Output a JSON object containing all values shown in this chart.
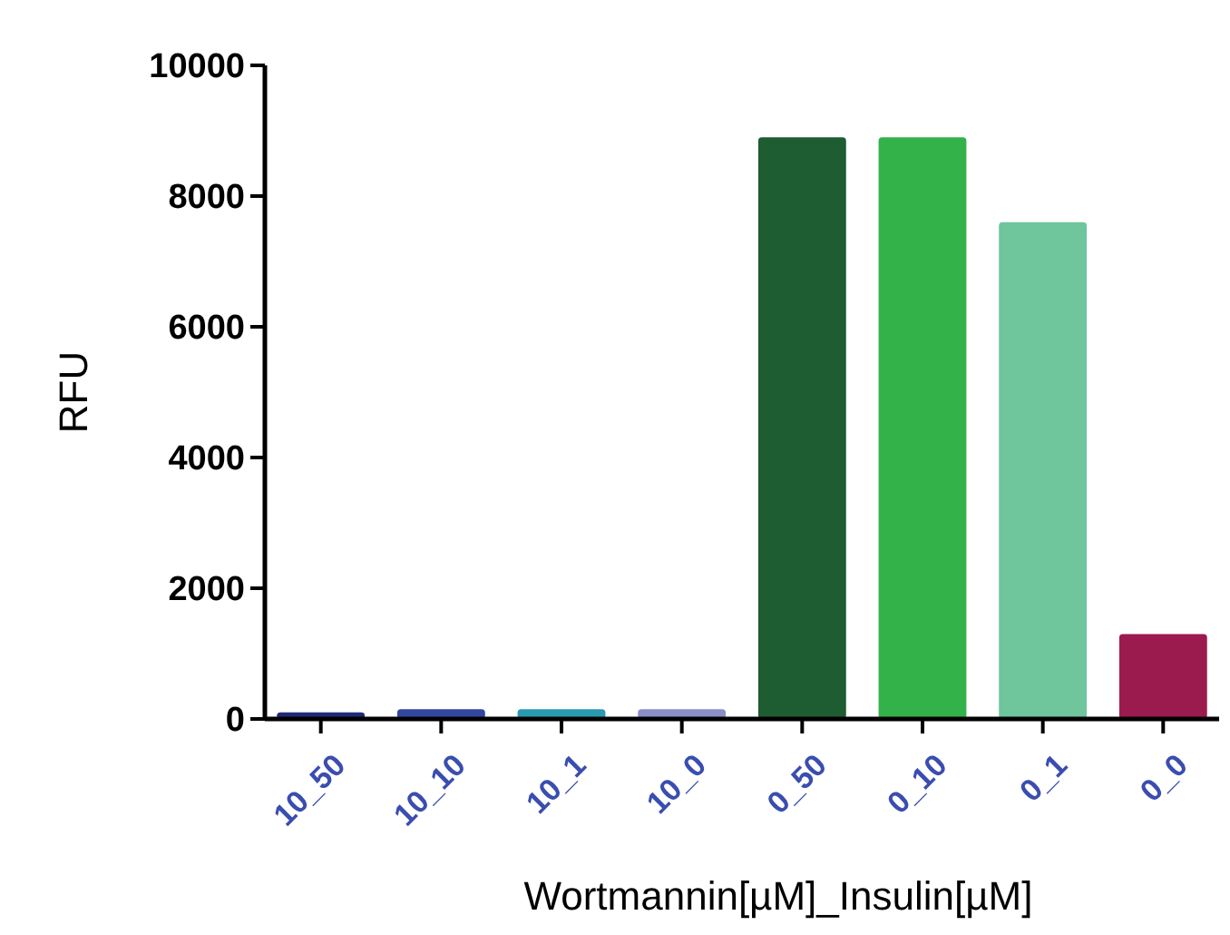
{
  "chart_data": {
    "type": "bar",
    "xlabel": "Wortmannin[µM]_Insulin[µM]",
    "ylabel": "RFU",
    "categories": [
      "10_50",
      "10_10",
      "10_1",
      "10_0",
      "0_50",
      "0_10",
      "0_1",
      "0_0"
    ],
    "values": [
      100,
      150,
      150,
      150,
      8900,
      8900,
      7600,
      1300
    ],
    "colors": [
      "#1f2a78",
      "#3347a0",
      "#2a9ab0",
      "#8a8fc8",
      "#1e5c32",
      "#33b24a",
      "#6fc59c",
      "#9c1b4e"
    ],
    "ylim": [
      0,
      10000
    ],
    "yticks": [
      0,
      2000,
      4000,
      6000,
      8000,
      10000
    ]
  }
}
